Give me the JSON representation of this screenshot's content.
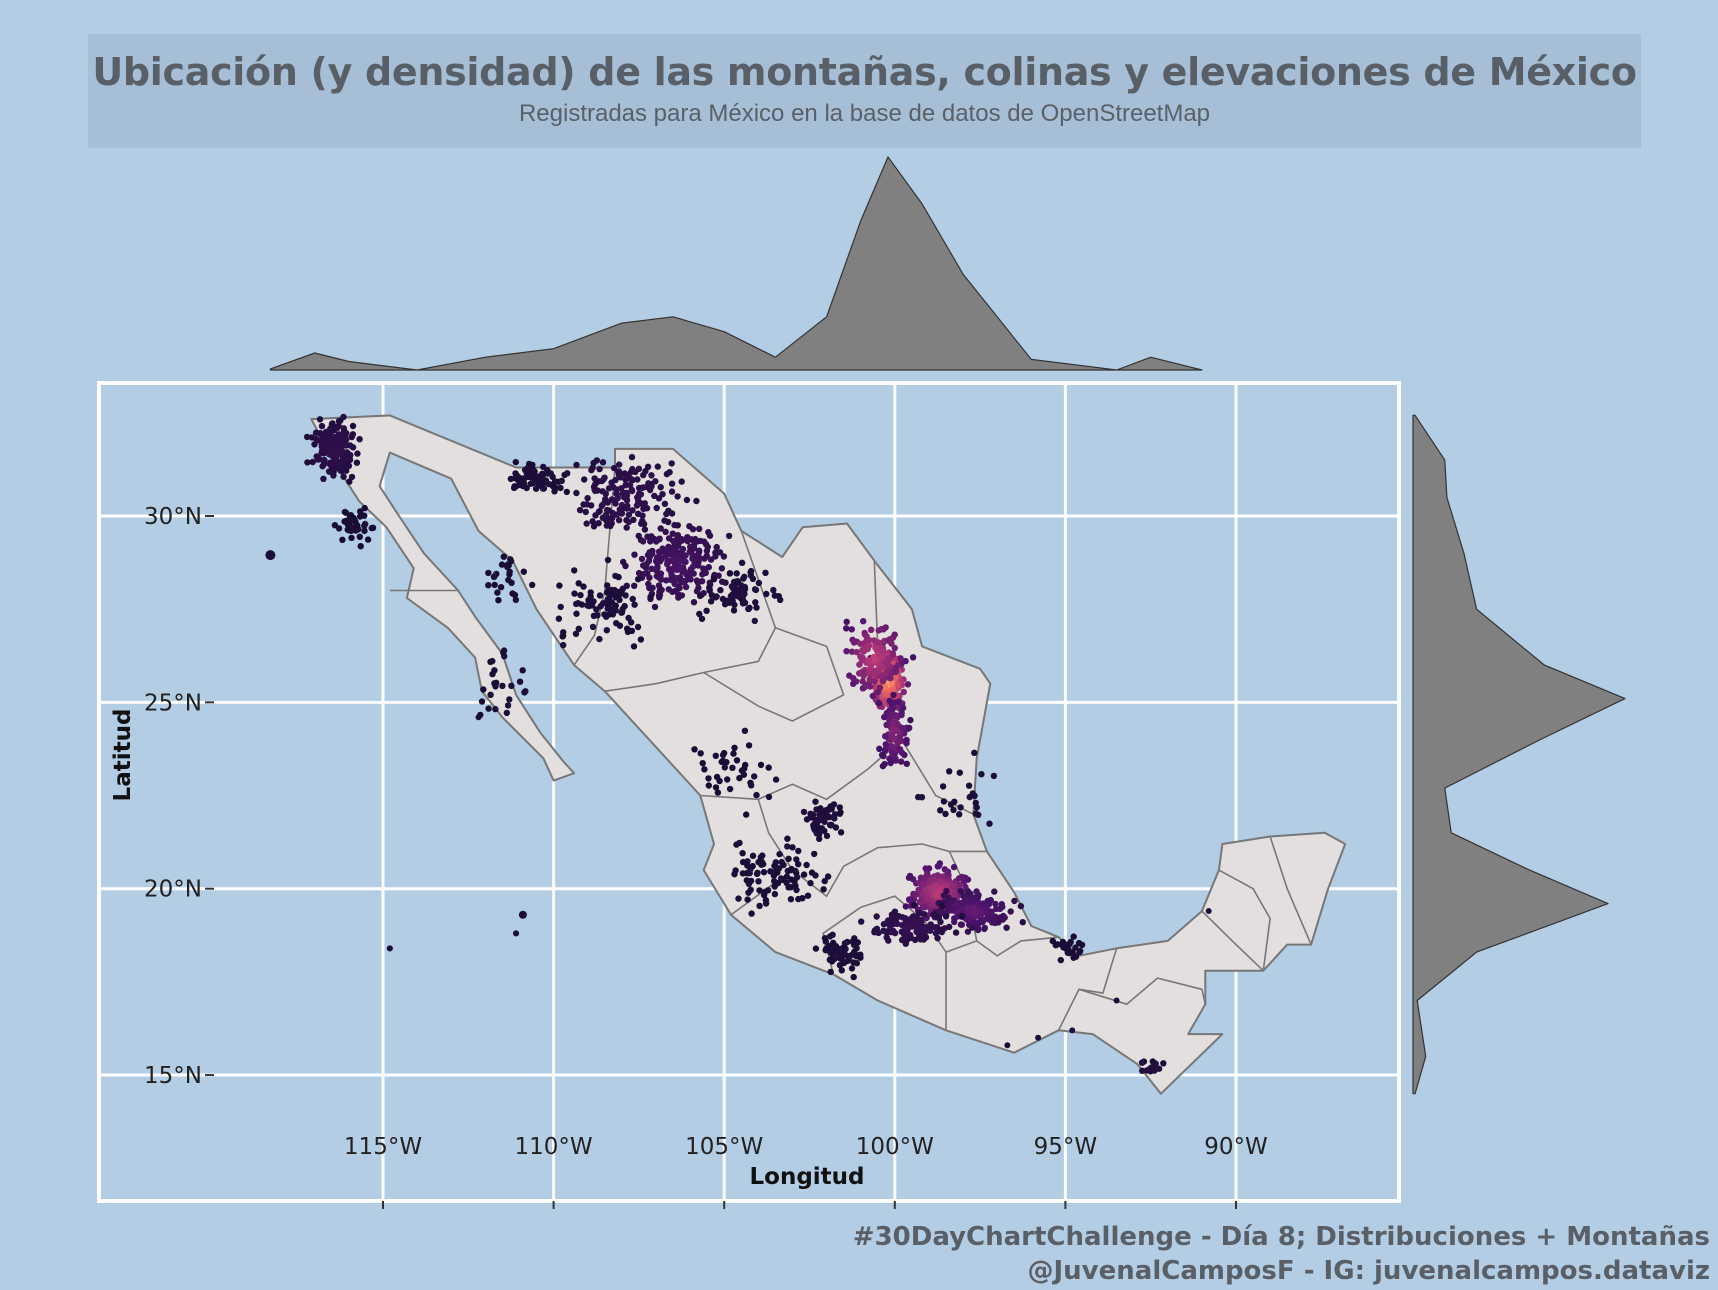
{
  "title": "Ubicación (y densidad) de las montañas, colinas y elevaciones de México",
  "subtitle": "Registradas para México en la base de datos de OpenStreetMap",
  "caption": {
    "line1": "#30DayChartChallenge - Día 8; Distribuciones + Montañas",
    "line2": "@JuvenalCamposF - IG: juvenalcampos.dataviz"
  },
  "colors": {
    "background": "#b3cde4",
    "land": "#e2dfde",
    "border": "#777777",
    "density": "#808080",
    "grid": "#ffffff",
    "points_low": "#1a0f3a",
    "points_mid": "#c43c78",
    "points_high": "#fcf4b0"
  },
  "chart_data": {
    "type": "scatter",
    "xlabel": "Longitud",
    "ylabel": "Latitud",
    "xlim": [
      -123.3,
      -85
    ],
    "ylim": [
      13.1,
      35.2
    ],
    "x_ticks": [
      -115,
      -110,
      -105,
      -100,
      -95,
      -90
    ],
    "x_tick_labels": [
      "115°W",
      "110°W",
      "105°W",
      "100°W",
      "95°W",
      "90°W"
    ],
    "y_ticks": [
      15,
      20,
      25,
      30
    ],
    "y_tick_labels": [
      "15°N",
      "20°N",
      "25°N",
      "30°N"
    ],
    "grid": true,
    "marginal_x_density": [
      [
        -118.3,
        0.005
      ],
      [
        -117,
        0.08
      ],
      [
        -116,
        0.04
      ],
      [
        -114,
        0.0
      ],
      [
        -112,
        0.06
      ],
      [
        -110,
        0.1
      ],
      [
        -108,
        0.22
      ],
      [
        -106.5,
        0.25
      ],
      [
        -105,
        0.18
      ],
      [
        -103.5,
        0.06
      ],
      [
        -102,
        0.25
      ],
      [
        -101,
        0.7
      ],
      [
        -100.2,
        1.0
      ],
      [
        -99.2,
        0.78
      ],
      [
        -98,
        0.45
      ],
      [
        -97,
        0.25
      ],
      [
        -96,
        0.05
      ],
      [
        -94.5,
        0.02
      ],
      [
        -93.5,
        0.0
      ],
      [
        -92.5,
        0.06
      ],
      [
        -91.5,
        0.02
      ],
      [
        -91,
        0.0
      ]
    ],
    "marginal_y_density": [
      [
        14.5,
        0.01
      ],
      [
        15.5,
        0.06
      ],
      [
        17,
        0.02
      ],
      [
        18.3,
        0.3
      ],
      [
        19.6,
        0.92
      ],
      [
        20.5,
        0.55
      ],
      [
        21.5,
        0.18
      ],
      [
        22.7,
        0.15
      ],
      [
        24,
        0.6
      ],
      [
        25.1,
        1.0
      ],
      [
        26,
        0.62
      ],
      [
        27.5,
        0.3
      ],
      [
        29,
        0.24
      ],
      [
        30.5,
        0.16
      ],
      [
        31.5,
        0.15
      ],
      [
        32.7,
        0.01
      ]
    ],
    "point_clusters": [
      {
        "lon": -116.4,
        "lat": 31.8,
        "sdx": 0.45,
        "sdy": 0.5,
        "n": 160,
        "level": 0.12
      },
      {
        "lon": -115.8,
        "lat": 29.7,
        "sdx": 0.35,
        "sdy": 0.3,
        "n": 40,
        "level": 0.02
      },
      {
        "lon": -110.5,
        "lat": 31.0,
        "sdx": 0.6,
        "sdy": 0.25,
        "n": 70,
        "level": 0.04
      },
      {
        "lon": -106.4,
        "lat": 28.7,
        "sdx": 0.9,
        "sdy": 0.7,
        "n": 230,
        "level": 0.22
      },
      {
        "lon": -107.8,
        "lat": 30.5,
        "sdx": 1.1,
        "sdy": 0.8,
        "n": 160,
        "level": 0.12
      },
      {
        "lon": -108.5,
        "lat": 27.6,
        "sdx": 1.0,
        "sdy": 0.6,
        "n": 90,
        "level": 0.04
      },
      {
        "lon": -104.5,
        "lat": 27.9,
        "sdx": 0.8,
        "sdy": 0.5,
        "n": 70,
        "level": 0.05
      },
      {
        "lon": -100.2,
        "lat": 25.6,
        "sdx": 0.3,
        "sdy": 0.5,
        "n": 260,
        "level": 0.92
      },
      {
        "lon": -100.6,
        "lat": 26.2,
        "sdx": 0.6,
        "sdy": 0.7,
        "n": 140,
        "level": 0.55
      },
      {
        "lon": -100.0,
        "lat": 24.2,
        "sdx": 0.3,
        "sdy": 0.7,
        "n": 90,
        "level": 0.4
      },
      {
        "lon": -98.7,
        "lat": 19.9,
        "sdx": 0.6,
        "sdy": 0.45,
        "n": 260,
        "level": 0.55
      },
      {
        "lon": -97.7,
        "lat": 19.4,
        "sdx": 0.7,
        "sdy": 0.35,
        "n": 160,
        "level": 0.32
      },
      {
        "lon": -99.5,
        "lat": 19.0,
        "sdx": 0.8,
        "sdy": 0.3,
        "n": 120,
        "level": 0.15
      },
      {
        "lon": -102.1,
        "lat": 21.9,
        "sdx": 0.4,
        "sdy": 0.4,
        "n": 60,
        "level": 0.05
      },
      {
        "lon": -103.5,
        "lat": 20.4,
        "sdx": 0.9,
        "sdy": 0.6,
        "n": 90,
        "level": 0.03
      },
      {
        "lon": -101.5,
        "lat": 18.3,
        "sdx": 0.5,
        "sdy": 0.35,
        "n": 70,
        "level": 0.04
      },
      {
        "lon": -94.9,
        "lat": 18.4,
        "sdx": 0.35,
        "sdy": 0.2,
        "n": 25,
        "level": 0.02
      },
      {
        "lon": -92.5,
        "lat": 15.2,
        "sdx": 0.25,
        "sdy": 0.2,
        "n": 15,
        "level": 0.06
      },
      {
        "lon": -111.3,
        "lat": 28.4,
        "sdx": 0.4,
        "sdy": 0.4,
        "n": 25,
        "level": 0.02
      },
      {
        "lon": -111.4,
        "lat": 25.5,
        "sdx": 0.5,
        "sdy": 0.8,
        "n": 25,
        "level": 0.02
      },
      {
        "lon": -104.8,
        "lat": 23.3,
        "sdx": 0.8,
        "sdy": 0.8,
        "n": 40,
        "level": 0.02
      },
      {
        "lon": -98.0,
        "lat": 22.5,
        "sdx": 0.8,
        "sdy": 0.8,
        "n": 25,
        "level": 0.04
      }
    ],
    "isolated_points": [
      [
        -118.3,
        29.0
      ],
      [
        -118.3,
        28.9
      ],
      [
        -114.8,
        18.4
      ],
      [
        -110.9,
        19.3
      ],
      [
        -111.1,
        18.8
      ],
      [
        -112.2,
        24.6
      ],
      [
        -93.5,
        17.0
      ],
      [
        -94.8,
        16.2
      ],
      [
        -90.8,
        19.4
      ],
      [
        -95.8,
        16.0
      ],
      [
        -96.7,
        15.8
      ]
    ]
  }
}
